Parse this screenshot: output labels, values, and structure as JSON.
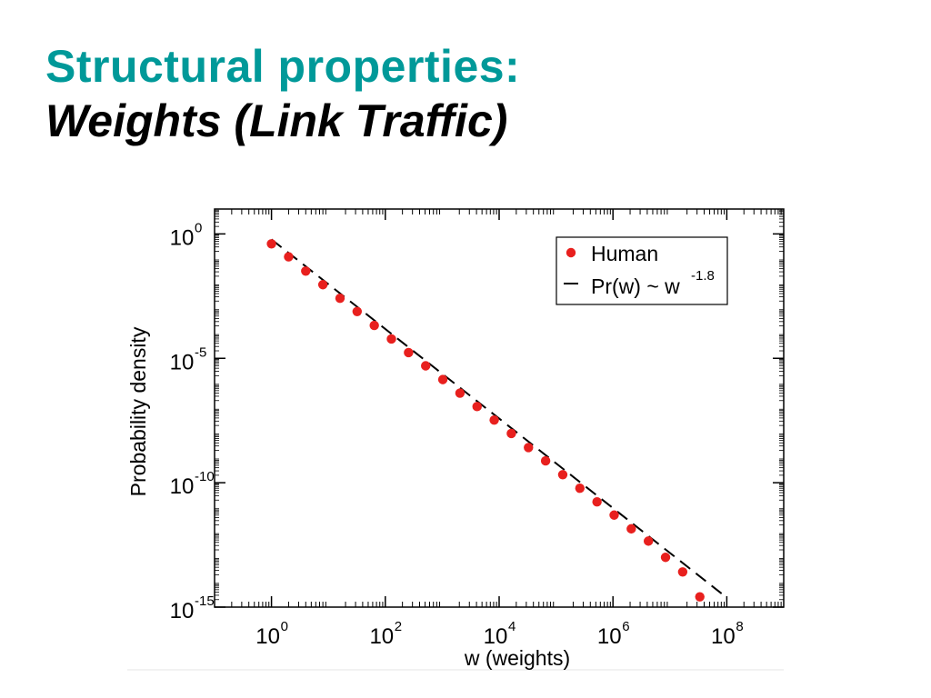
{
  "slide": {
    "title_line1": "Structural properties:",
    "title_line2": "Weights (Link Traffic)"
  },
  "chart_data": {
    "type": "scatter",
    "xlabel": "w (weights)",
    "ylabel": "Probability density",
    "x_scale": "log",
    "y_scale": "log",
    "xlim": [
      0.1,
      1000000000.0
    ],
    "ylim": [
      1e-15,
      10.0
    ],
    "x_ticks": [
      {
        "value": 1,
        "base": "10",
        "exp": "0"
      },
      {
        "value": 100,
        "base": "10",
        "exp": "2"
      },
      {
        "value": 10000,
        "base": "10",
        "exp": "4"
      },
      {
        "value": 1000000,
        "base": "10",
        "exp": "6"
      },
      {
        "value": 100000000,
        "base": "10",
        "exp": "8"
      }
    ],
    "y_ticks": [
      {
        "value": 1,
        "base": "10",
        "exp": "0"
      },
      {
        "value": 1e-05,
        "base": "10",
        "exp": "-5"
      },
      {
        "value": 1e-10,
        "base": "10",
        "exp": "-10"
      },
      {
        "value": 1e-15,
        "base": "10",
        "exp": "-15"
      }
    ],
    "grid": false,
    "legend_position": "top-right",
    "series": [
      {
        "name": "Human",
        "kind": "points",
        "color": "#e8201e",
        "x": [
          1,
          2,
          4,
          8,
          16,
          32,
          64,
          128,
          256,
          512,
          1024,
          2048,
          4096,
          8192,
          16384,
          32768,
          65536,
          131072,
          262144,
          524288,
          1048576,
          2097152,
          4194304,
          8388608,
          16777216,
          33554432
        ],
        "y": [
          0.4,
          0.12,
          0.032,
          0.0091,
          0.0026,
          0.00076,
          0.00021,
          6e-05,
          1.7e-05,
          5e-06,
          1.4e-06,
          4e-07,
          1.15e-07,
          3.3e-08,
          9.5e-09,
          2.6e-09,
          7.6e-10,
          2.1e-10,
          6e-11,
          1.7e-11,
          5e-12,
          1.4e-12,
          4.5e-13,
          1e-13,
          2.6e-14,
          2.6e-15
        ]
      },
      {
        "name": "Pr(w) ~ w",
        "name_sup": "-1.8",
        "kind": "dashed-line",
        "color": "#000000",
        "x": [
          1,
          100000000
        ],
        "y": [
          0.6,
          2.4e-15
        ]
      }
    ]
  }
}
